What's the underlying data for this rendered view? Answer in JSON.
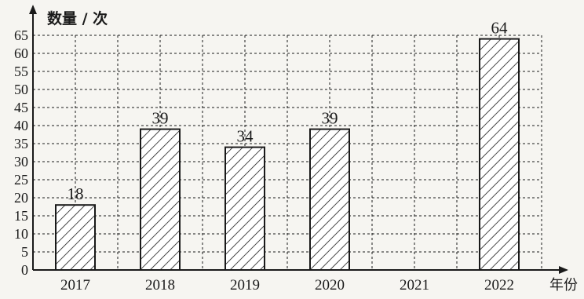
{
  "chart_data": {
    "type": "bar",
    "ylabel": "数量 / 次",
    "xlabel": "年份",
    "categories": [
      "2017",
      "2018",
      "2019",
      "2020",
      "2021",
      "2022"
    ],
    "values": [
      18,
      39,
      34,
      39,
      null,
      64
    ],
    "data_labels": [
      "18",
      "39",
      "34",
      "39",
      "",
      "64"
    ],
    "ylim": [
      0,
      65
    ],
    "yticks": [
      0,
      5,
      10,
      15,
      20,
      25,
      30,
      35,
      40,
      45,
      50,
      55,
      60,
      65
    ],
    "grid": true,
    "bar_fill": "diagonal-hatch",
    "colors": {
      "ink": "#1a1a1a",
      "background": "#f6f5f1"
    }
  }
}
